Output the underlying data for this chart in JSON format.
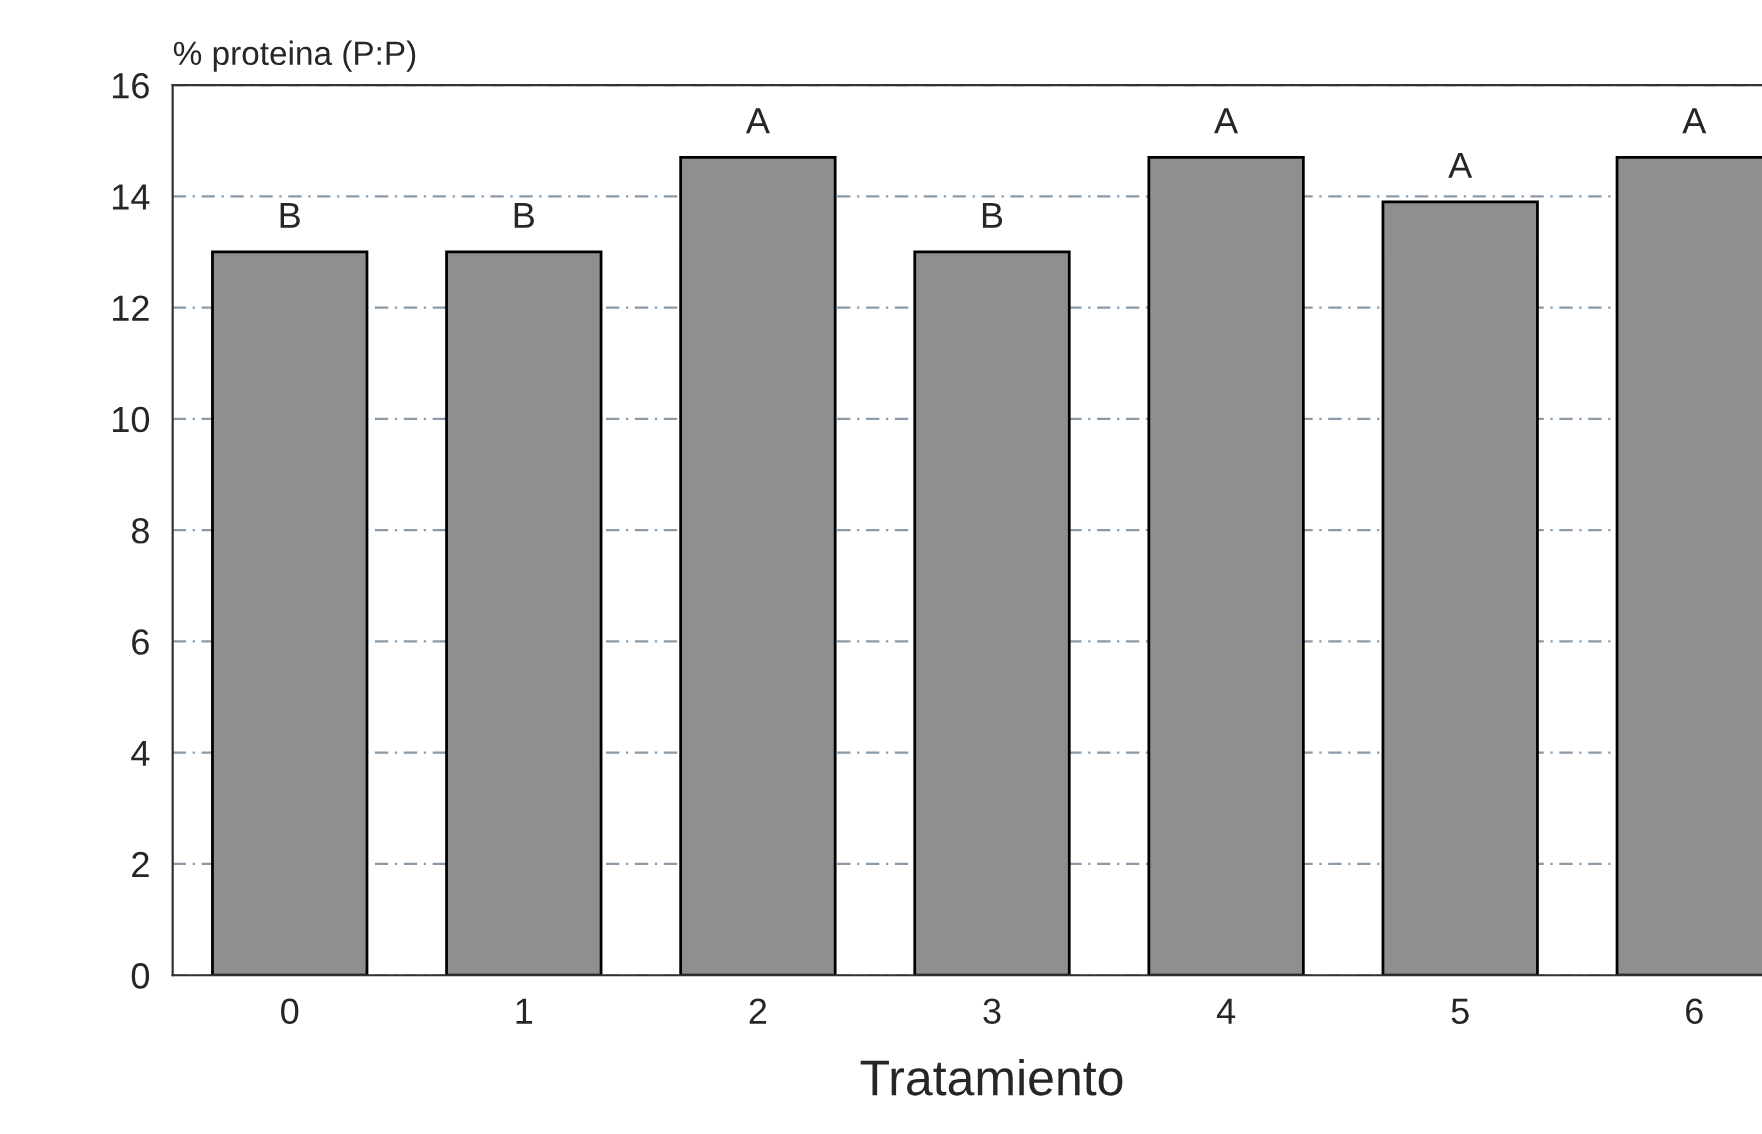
{
  "chart_data": {
    "type": "bar",
    "ylabel": "% proteina (P:P)",
    "xlabel": "Tratamiento",
    "categories": [
      "0",
      "1",
      "2",
      "3",
      "4",
      "5",
      "6"
    ],
    "values": [
      13.0,
      13.0,
      14.7,
      13.0,
      14.7,
      13.9,
      14.7
    ],
    "color": "#8f8f8f",
    "ylim": [
      0,
      16
    ],
    "yticks": [
      0,
      2,
      4,
      6,
      8,
      10,
      12,
      14,
      16
    ],
    "grid": "y",
    "annotations": [
      {
        "text": "B",
        "x": "0",
        "y": 13.0
      },
      {
        "text": "B",
        "x": "1",
        "y": 13.0
      },
      {
        "text": "A",
        "x": "2",
        "y": 14.7
      },
      {
        "text": "B",
        "x": "3",
        "y": 13.0
      },
      {
        "text": "A",
        "x": "4",
        "y": 14.7
      },
      {
        "text": "A",
        "x": "5",
        "y": 13.9
      },
      {
        "text": "A",
        "x": "6",
        "y": 14.7
      }
    ]
  }
}
